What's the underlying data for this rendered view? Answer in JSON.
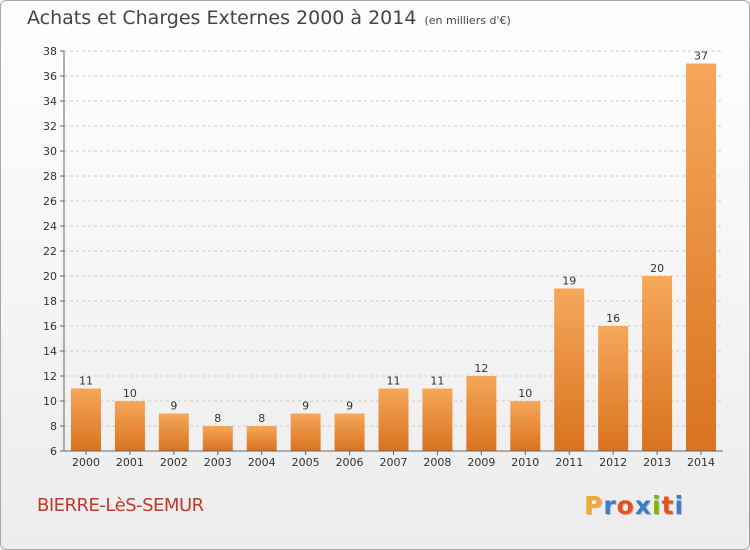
{
  "title": "Achats et Charges Externes 2000 à 2014",
  "unit": "(en milliers d'€)",
  "commune": "BIERRE-LèS-SEMUR",
  "logo": {
    "letters": [
      "P",
      "r",
      "o",
      "x",
      "i",
      "t",
      "i"
    ],
    "colors": [
      "#f0a830",
      "#3b7ec8",
      "#e94e1b",
      "#3b7ec8",
      "#7ab800",
      "#e94e1b",
      "#3b7ec8"
    ]
  },
  "colors": {
    "bar_light": "#f6a75a",
    "bar_dark": "#d8731f",
    "grid": "#cccccc",
    "commune": "#c0392b"
  },
  "chart_data": {
    "type": "bar",
    "title": "Achats et Charges Externes 2000 à 2014",
    "xlabel": "",
    "ylabel": "",
    "categories": [
      "2000",
      "2001",
      "2002",
      "2003",
      "2004",
      "2005",
      "2006",
      "2007",
      "2008",
      "2009",
      "2010",
      "2011",
      "2012",
      "2013",
      "2014"
    ],
    "values": [
      11,
      10,
      9,
      8,
      8,
      9,
      9,
      11,
      11,
      12,
      10,
      19,
      16,
      20,
      37
    ],
    "ylim": [
      6,
      38
    ],
    "yticks": [
      6,
      8,
      10,
      12,
      14,
      16,
      18,
      20,
      22,
      24,
      26,
      28,
      30,
      32,
      34,
      36,
      38
    ],
    "grid": true,
    "data_labels": true
  }
}
